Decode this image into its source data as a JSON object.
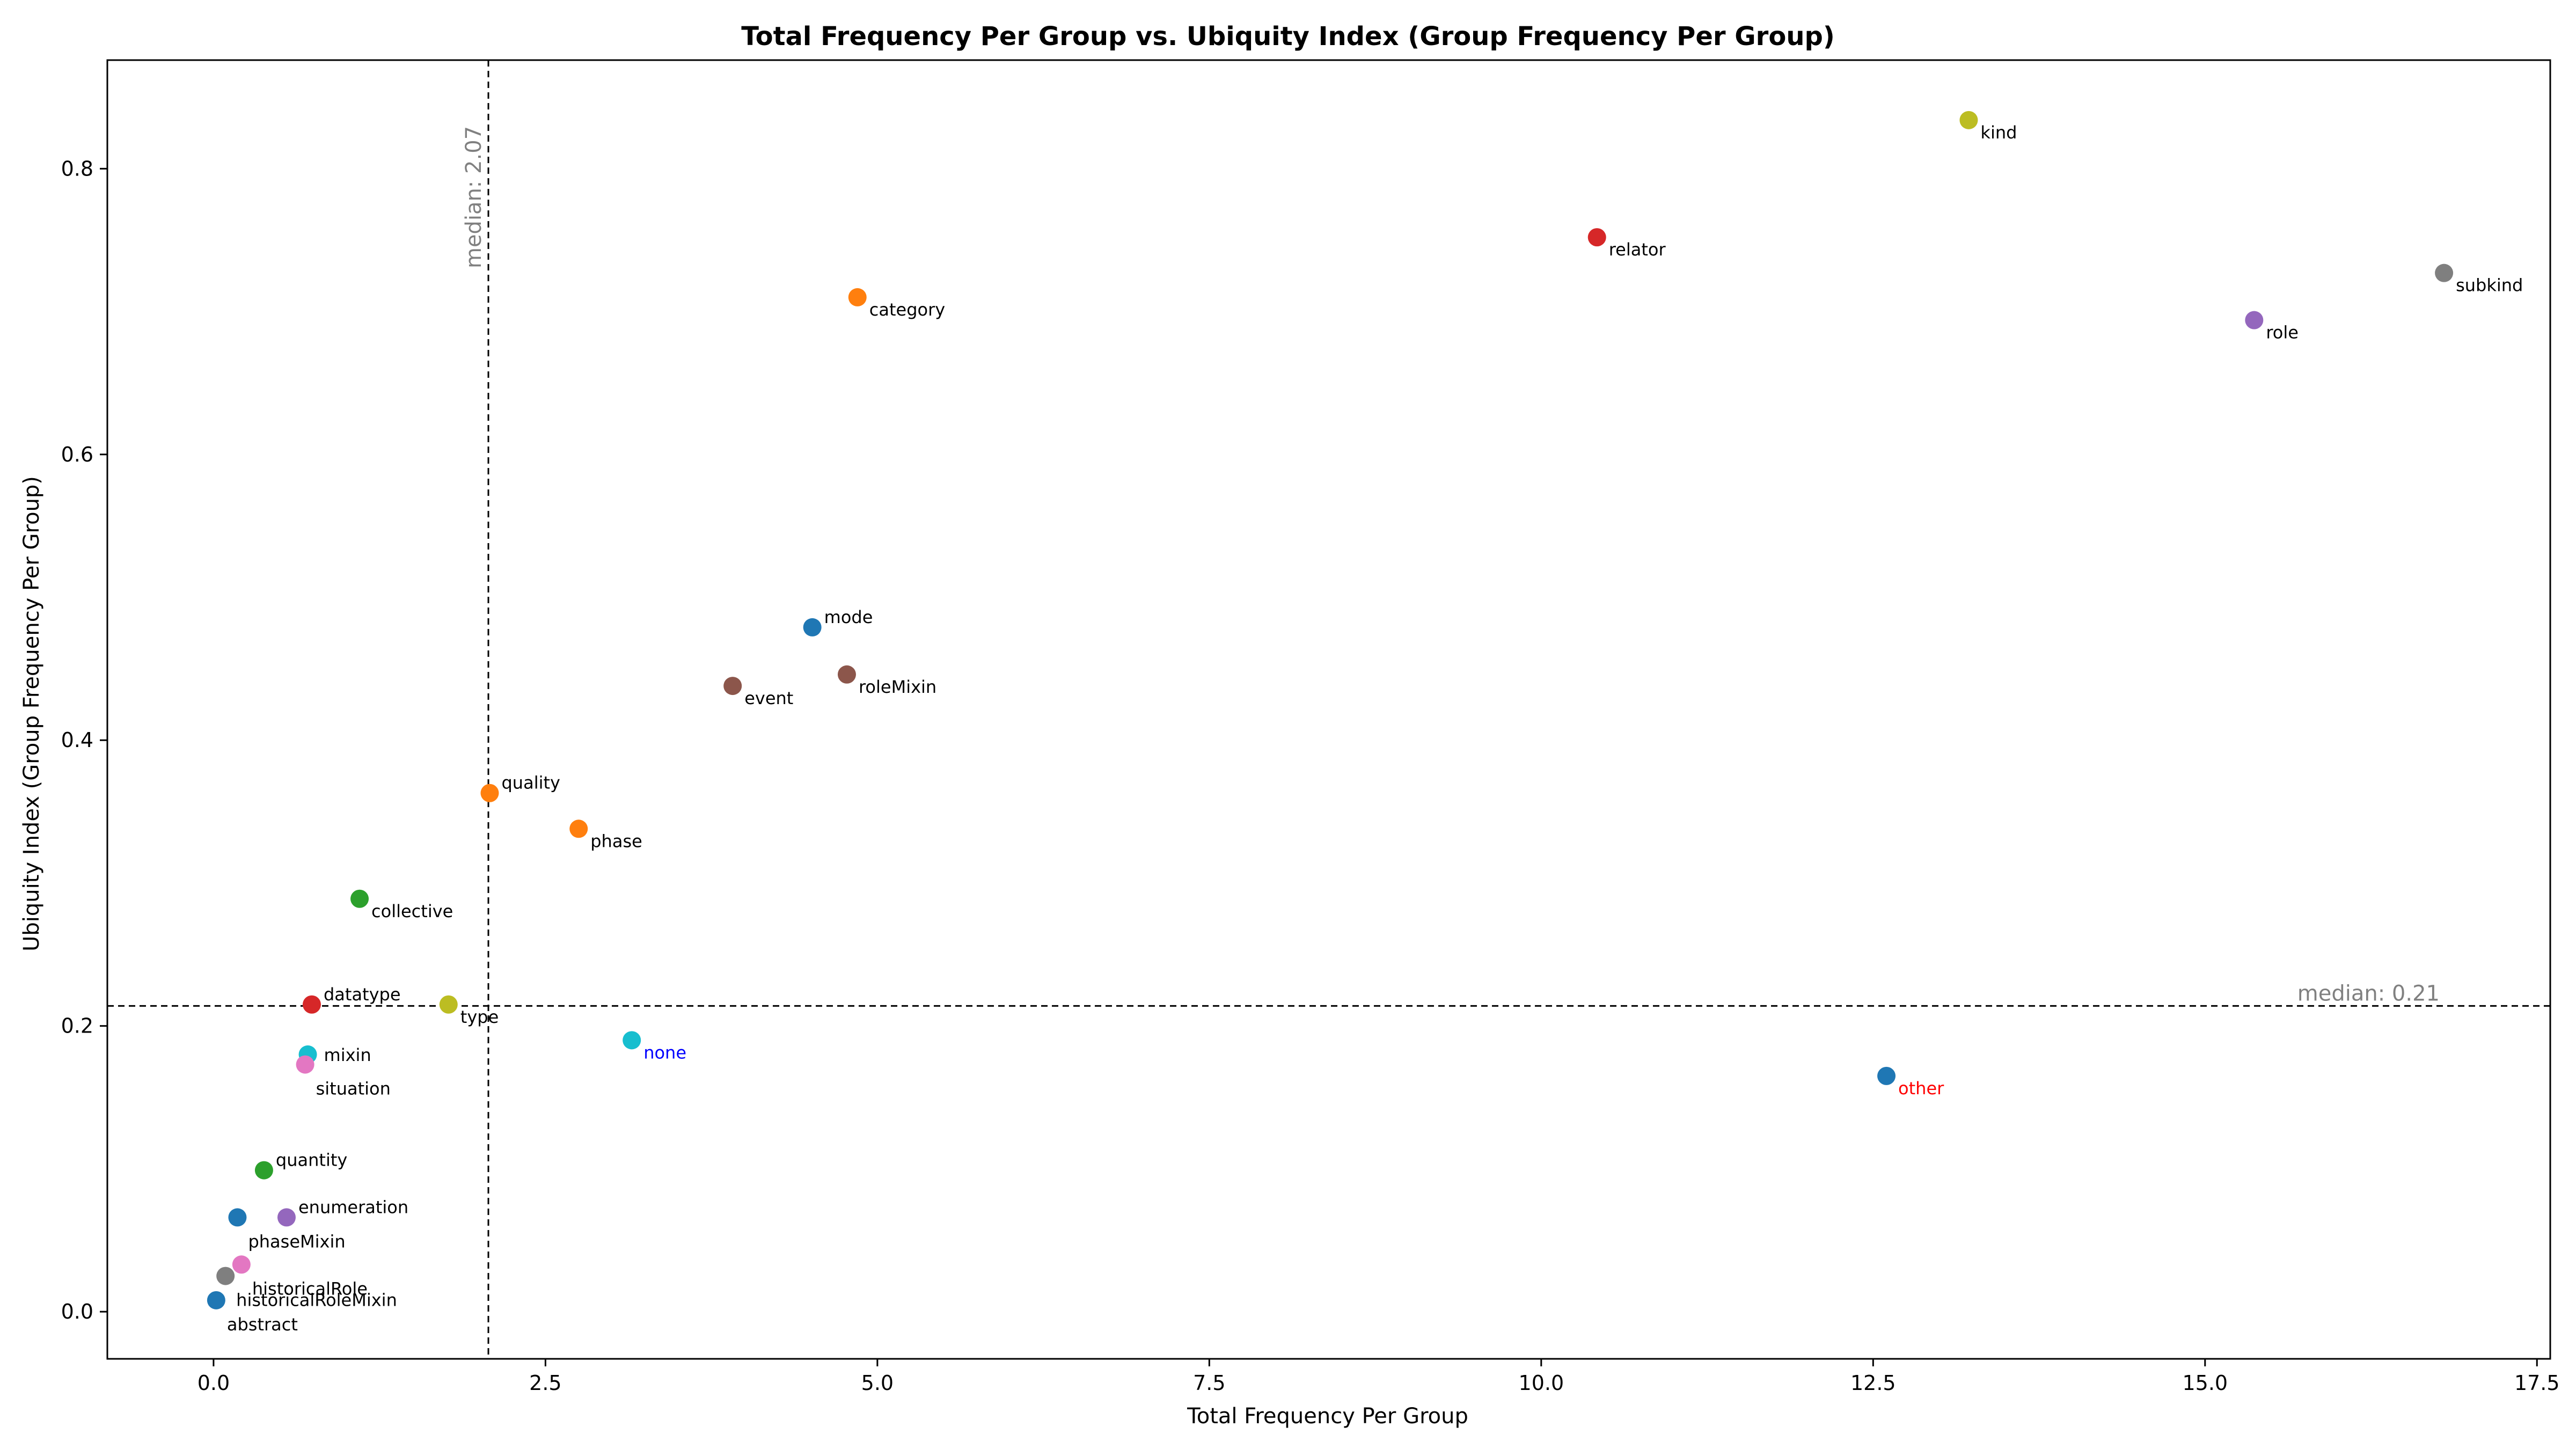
{
  "chart_data": {
    "type": "scatter",
    "title": "Total Frequency Per Group vs. Ubiquity Index (Group Frequency Per Group)",
    "xlabel": "Total Frequency Per Group",
    "ylabel": "Ubiquity Index (Group Frequency Per Group)",
    "xlim": [
      -0.8,
      17.6
    ],
    "ylim": [
      -0.033,
      0.876
    ],
    "xticks": [
      0.0,
      2.5,
      5.0,
      7.5,
      10.0,
      12.5,
      15.0,
      17.5
    ],
    "xtick_labels": [
      "0.0",
      "2.5",
      "5.0",
      "7.5",
      "10.0",
      "12.5",
      "15.0",
      "17.5"
    ],
    "yticks": [
      0.0,
      0.2,
      0.4,
      0.6,
      0.8
    ],
    "ytick_labels": [
      "0.0",
      "0.2",
      "0.4",
      "0.6",
      "0.8"
    ],
    "grid": false,
    "median_x": {
      "value": 2.07,
      "label": "median: 2.07"
    },
    "median_y": {
      "value": 0.214,
      "label": "median: 0.21"
    },
    "points": [
      {
        "label": "kind",
        "x": 13.22,
        "y": 0.834,
        "color": "#bcbd22",
        "label_color": "#000000",
        "label_pos": "below-right"
      },
      {
        "label": "relator",
        "x": 10.42,
        "y": 0.752,
        "color": "#d62728",
        "label_color": "#000000",
        "label_pos": "below-right"
      },
      {
        "label": "subkind",
        "x": 16.8,
        "y": 0.727,
        "color": "#7f7f7f",
        "label_color": "#000000",
        "label_pos": "below-right"
      },
      {
        "label": "category",
        "x": 4.85,
        "y": 0.71,
        "color": "#ff7f0e",
        "label_color": "#000000",
        "label_pos": "below-right"
      },
      {
        "label": "role",
        "x": 15.37,
        "y": 0.694,
        "color": "#9467bd",
        "label_color": "#000000",
        "label_pos": "below-right"
      },
      {
        "label": "mode",
        "x": 4.51,
        "y": 0.479,
        "color": "#1f77b4",
        "label_color": "#000000",
        "label_pos": "above-right"
      },
      {
        "label": "roleMixin",
        "x": 4.77,
        "y": 0.446,
        "color": "#8c564b",
        "label_color": "#000000",
        "label_pos": "below-right"
      },
      {
        "label": "event",
        "x": 3.91,
        "y": 0.438,
        "color": "#8c564b",
        "label_color": "#000000",
        "label_pos": "below-right"
      },
      {
        "label": "quality",
        "x": 2.08,
        "y": 0.363,
        "color": "#ff7f0e",
        "label_color": "#000000",
        "label_pos": "above-right"
      },
      {
        "label": "phase",
        "x": 2.75,
        "y": 0.338,
        "color": "#ff7f0e",
        "label_color": "#000000",
        "label_pos": "below-right"
      },
      {
        "label": "collective",
        "x": 1.1,
        "y": 0.289,
        "color": "#2ca02c",
        "label_color": "#000000",
        "label_pos": "below-right"
      },
      {
        "label": "datatype",
        "x": 0.74,
        "y": 0.215,
        "color": "#d62728",
        "label_color": "#000000",
        "label_pos": "above-right"
      },
      {
        "label": "type",
        "x": 1.77,
        "y": 0.215,
        "color": "#bcbd22",
        "label_color": "#000000",
        "label_pos": "below-right"
      },
      {
        "label": "none",
        "x": 3.15,
        "y": 0.19,
        "color": "#17becf",
        "label_color": "#0000ff",
        "label_pos": "below-right"
      },
      {
        "label": "mixin",
        "x": 0.71,
        "y": 0.18,
        "color": "#17becf",
        "label_color": "#000000",
        "label_pos": "right"
      },
      {
        "label": "situation",
        "x": 0.69,
        "y": 0.173,
        "color": "#e377c2",
        "label_color": "#000000",
        "label_pos": "below-far"
      },
      {
        "label": "other",
        "x": 12.6,
        "y": 0.165,
        "color": "#1f77b4",
        "label_color": "#ff0000",
        "label_pos": "below-right"
      },
      {
        "label": "quantity",
        "x": 0.38,
        "y": 0.099,
        "color": "#2ca02c",
        "label_color": "#000000",
        "label_pos": "above-right"
      },
      {
        "label": "enumeration",
        "x": 0.55,
        "y": 0.066,
        "color": "#9467bd",
        "label_color": "#000000",
        "label_pos": "above-right"
      },
      {
        "label": "phaseMixin",
        "x": 0.18,
        "y": 0.066,
        "color": "#1f77b4",
        "label_color": "#000000",
        "label_pos": "below-far"
      },
      {
        "label": "historicalRole",
        "x": 0.21,
        "y": 0.033,
        "color": "#e377c2",
        "label_color": "#000000",
        "label_pos": "below-far"
      },
      {
        "label": "historicalRoleMixin",
        "x": 0.09,
        "y": 0.025,
        "color": "#7f7f7f",
        "label_color": "#000000",
        "label_pos": "below-far"
      },
      {
        "label": "abstract",
        "x": 0.02,
        "y": 0.008,
        "color": "#1f77b4",
        "label_color": "#000000",
        "label_pos": "below-far"
      }
    ]
  }
}
